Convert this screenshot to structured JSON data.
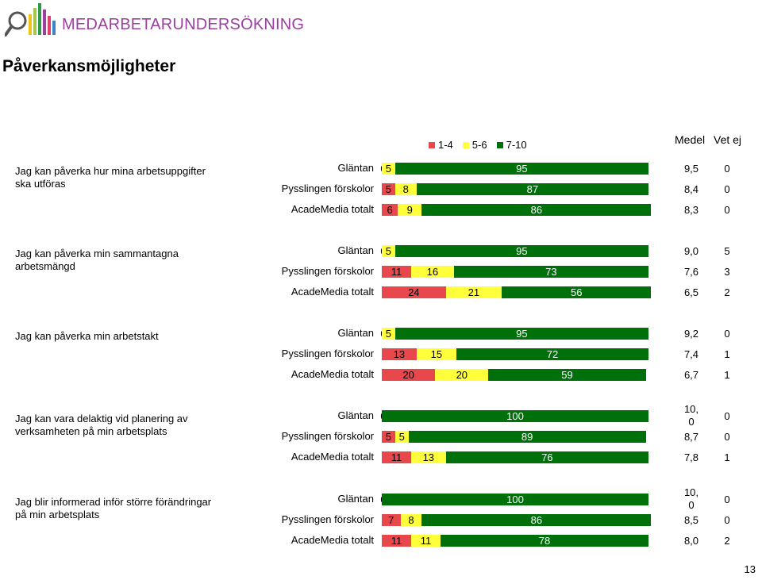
{
  "header": {
    "brand": "MEDARBETARUNDERSÖKNING",
    "title": "Påverkansmöjligheter"
  },
  "colors": {
    "low": "#e8474c",
    "mid": "#ffff3c",
    "high": "#00700a",
    "brand": "#9b3fa0"
  },
  "columns": {
    "medel": "Medel",
    "vet_ej": "Vet ej"
  },
  "page_number": "13",
  "chart_data": {
    "type": "bar",
    "orientation": "horizontal",
    "stacked": true,
    "percent": true,
    "legend": [
      {
        "name": "1-4",
        "color": "#e8474c"
      },
      {
        "name": "5-6",
        "color": "#ffff3c"
      },
      {
        "name": "7-10",
        "color": "#00700a"
      }
    ],
    "legend_position": "top",
    "groups": [
      {
        "question": "Jag kan påverka  hur mina arbetsuppgifter  ska utföras",
        "rows": [
          {
            "label": "Gläntan",
            "values": [
              0,
              5,
              95
            ],
            "value_labels": [
              "0",
              "5",
              "95"
            ],
            "medel": "9,5",
            "vet_ej": "0"
          },
          {
            "label": "Pysslingen förskolor",
            "values": [
              5,
              8,
              87
            ],
            "value_labels": [
              "5",
              "8",
              "87"
            ],
            "medel": "8,4",
            "vet_ej": "0"
          },
          {
            "label": "AcadeMedia totalt",
            "values": [
              6,
              9,
              86
            ],
            "value_labels": [
              "6",
              "9",
              "86"
            ],
            "medel": "8,3",
            "vet_ej": "0"
          }
        ]
      },
      {
        "question": "Jag kan påverka  min sammantagna arbetsmängd",
        "rows": [
          {
            "label": "Gläntan",
            "values": [
              0,
              5,
              95
            ],
            "value_labels": [
              "0",
              "5",
              "95"
            ],
            "medel": "9,0",
            "vet_ej": "5"
          },
          {
            "label": "Pysslingen förskolor",
            "values": [
              11,
              16,
              73
            ],
            "value_labels": [
              "11",
              "16",
              "73"
            ],
            "medel": "7,6",
            "vet_ej": "3"
          },
          {
            "label": "AcadeMedia totalt",
            "values": [
              24,
              21,
              56
            ],
            "value_labels": [
              "24",
              "21",
              "56"
            ],
            "medel": "6,5",
            "vet_ej": "2"
          }
        ]
      },
      {
        "question": "Jag kan påverka  min arbetstakt",
        "rows": [
          {
            "label": "Gläntan",
            "values": [
              0,
              5,
              95
            ],
            "value_labels": [
              "0",
              "5",
              "95"
            ],
            "medel": "9,2",
            "vet_ej": "0"
          },
          {
            "label": "Pysslingen förskolor",
            "values": [
              13,
              15,
              72
            ],
            "value_labels": [
              "13",
              "15",
              "72"
            ],
            "medel": "7,4",
            "vet_ej": "1"
          },
          {
            "label": "AcadeMedia totalt",
            "values": [
              20,
              20,
              59
            ],
            "value_labels": [
              "20",
              "20",
              "59"
            ],
            "medel": "6,7",
            "vet_ej": "1"
          }
        ]
      },
      {
        "question": "Jag kan vara  delaktig vid planering  av verksamheten  på min arbetsplats",
        "rows": [
          {
            "label": "Gläntan",
            "values": [
              0,
              0,
              100
            ],
            "value_labels": [
              "0",
              "",
              "100"
            ],
            "medel": "10,\n0",
            "vet_ej": "0"
          },
          {
            "label": "Pysslingen förskolor",
            "values": [
              5,
              5,
              89
            ],
            "value_labels": [
              "5",
              "5",
              "89"
            ],
            "medel": "8,7",
            "vet_ej": "0"
          },
          {
            "label": "AcadeMedia totalt",
            "values": [
              11,
              13,
              76
            ],
            "value_labels": [
              "11",
              "13",
              "76"
            ],
            "medel": "7,8",
            "vet_ej": "1"
          }
        ]
      },
      {
        "question": "Jag blir informerad  inför  större förändringar  på min arbetsplats",
        "rows": [
          {
            "label": "Gläntan",
            "values": [
              0,
              0,
              100
            ],
            "value_labels": [
              "0",
              "",
              "100"
            ],
            "medel": "10,\n0",
            "vet_ej": "0"
          },
          {
            "label": "Pysslingen förskolor",
            "values": [
              7,
              8,
              86
            ],
            "value_labels": [
              "7",
              "8",
              "86"
            ],
            "medel": "8,5",
            "vet_ej": "0"
          },
          {
            "label": "AcadeMedia totalt",
            "values": [
              11,
              11,
              78
            ],
            "value_labels": [
              "11",
              "11",
              "78"
            ],
            "medel": "8,0",
            "vet_ej": "2"
          }
        ]
      }
    ]
  }
}
